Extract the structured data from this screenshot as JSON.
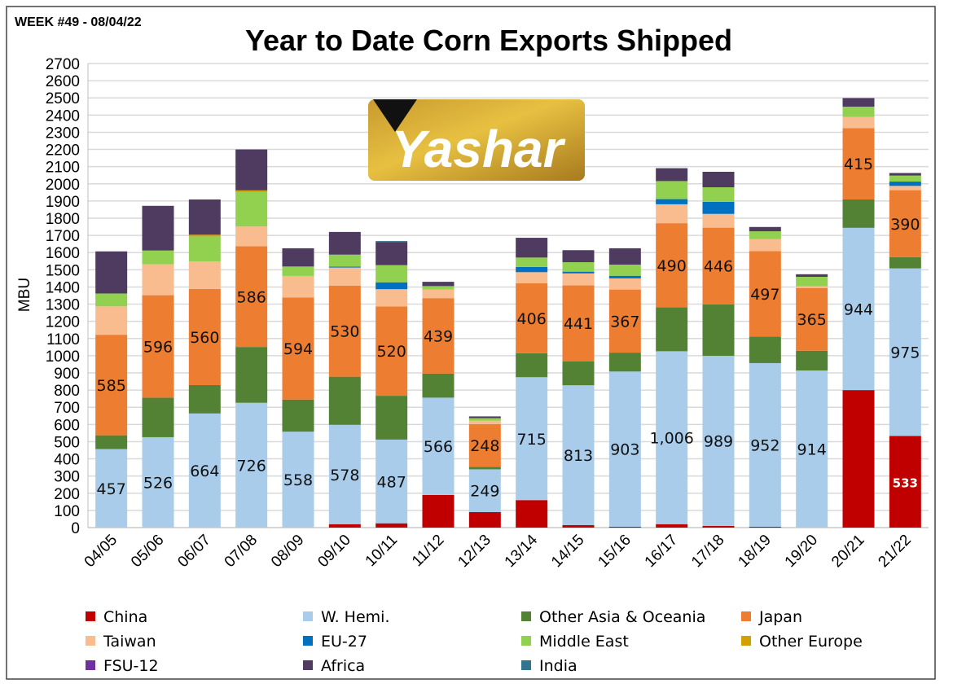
{
  "week_label": "WEEK #49 - 08/04/22",
  "logo_text": "Yashar",
  "chart_data": {
    "type": "bar",
    "stacked": true,
    "title": "Year to Date Corn Exports Shipped",
    "xlabel": "",
    "ylabel": "MBU",
    "ylim": [
      0,
      2700
    ],
    "ytick_step": 100,
    "grid": true,
    "legend_position": "bottom",
    "categories": [
      "04/05",
      "05/06",
      "06/07",
      "07/08",
      "08/09",
      "09/10",
      "10/11",
      "11/12",
      "12/13",
      "13/14",
      "14/15",
      "15/16",
      "16/17",
      "17/18",
      "18/19",
      "19/20",
      "20/21",
      "21/22"
    ],
    "series": [
      {
        "name": "China",
        "color": "#C00000",
        "values": [
          0,
          0,
          0,
          0,
          0,
          20,
          25,
          190,
          90,
          160,
          15,
          5,
          20,
          10,
          5,
          0,
          800,
          533
        ],
        "labels": [
          null,
          null,
          null,
          null,
          null,
          null,
          null,
          null,
          null,
          null,
          null,
          null,
          null,
          null,
          null,
          null,
          null,
          "533"
        ]
      },
      {
        "name": "W. Hemi.",
        "color": "#A9CCEA",
        "values": [
          457,
          526,
          664,
          726,
          558,
          578,
          487,
          566,
          249,
          715,
          813,
          903,
          1006,
          989,
          952,
          914,
          944,
          975
        ],
        "labels": [
          "457",
          "526",
          "664",
          "726",
          "558",
          "578",
          "487",
          "566",
          "249",
          "715",
          "813",
          "903",
          "1,006",
          "989",
          "952",
          "914",
          "944",
          "975"
        ]
      },
      {
        "name": "Other Asia & Oceania",
        "color": "#548235",
        "values": [
          80,
          230,
          165,
          325,
          187,
          280,
          255,
          140,
          15,
          140,
          140,
          110,
          255,
          300,
          155,
          115,
          165,
          65
        ]
      },
      {
        "name": "Japan",
        "color": "#ED7D31",
        "values": [
          585,
          596,
          560,
          586,
          594,
          530,
          520,
          439,
          248,
          406,
          441,
          367,
          490,
          446,
          497,
          365,
          415,
          390
        ],
        "labels": [
          "585",
          "596",
          "560",
          "586",
          "594",
          "530",
          "520",
          "439",
          "248",
          "406",
          "441",
          "367",
          "490",
          "446",
          "497",
          "365",
          "415",
          "390"
        ]
      },
      {
        "name": "Taiwan",
        "color": "#F8BC8E",
        "values": [
          165,
          180,
          160,
          115,
          125,
          105,
          100,
          50,
          20,
          65,
          70,
          65,
          110,
          80,
          70,
          10,
          65,
          25
        ]
      },
      {
        "name": "EU-27",
        "color": "#0070C0",
        "values": [
          0,
          0,
          0,
          0,
          0,
          5,
          40,
          0,
          0,
          30,
          10,
          15,
          30,
          70,
          0,
          0,
          0,
          25
        ]
      },
      {
        "name": "Middle East",
        "color": "#92D050",
        "values": [
          75,
          80,
          145,
          200,
          55,
          70,
          100,
          20,
          15,
          55,
          55,
          65,
          105,
          85,
          45,
          55,
          60,
          35
        ]
      },
      {
        "name": "Other Europe",
        "color": "#D4A000",
        "values": [
          0,
          0,
          10,
          10,
          0,
          0,
          0,
          0,
          0,
          0,
          0,
          0,
          0,
          0,
          0,
          0,
          0,
          0
        ]
      },
      {
        "name": "FSU-12",
        "color": "#7030A0",
        "values": [
          0,
          0,
          0,
          0,
          0,
          0,
          0,
          0,
          0,
          0,
          0,
          0,
          0,
          0,
          0,
          0,
          0,
          0
        ]
      },
      {
        "name": "Africa",
        "color": "#4F3A60",
        "values": [
          245,
          260,
          205,
          238,
          106,
          132,
          135,
          25,
          10,
          115,
          70,
          95,
          75,
          90,
          25,
          15,
          50,
          15
        ]
      },
      {
        "name": "India",
        "color": "#31758F",
        "values": [
          0,
          0,
          0,
          0,
          0,
          0,
          5,
          0,
          0,
          0,
          0,
          0,
          0,
          0,
          0,
          0,
          0,
          0
        ]
      }
    ]
  }
}
